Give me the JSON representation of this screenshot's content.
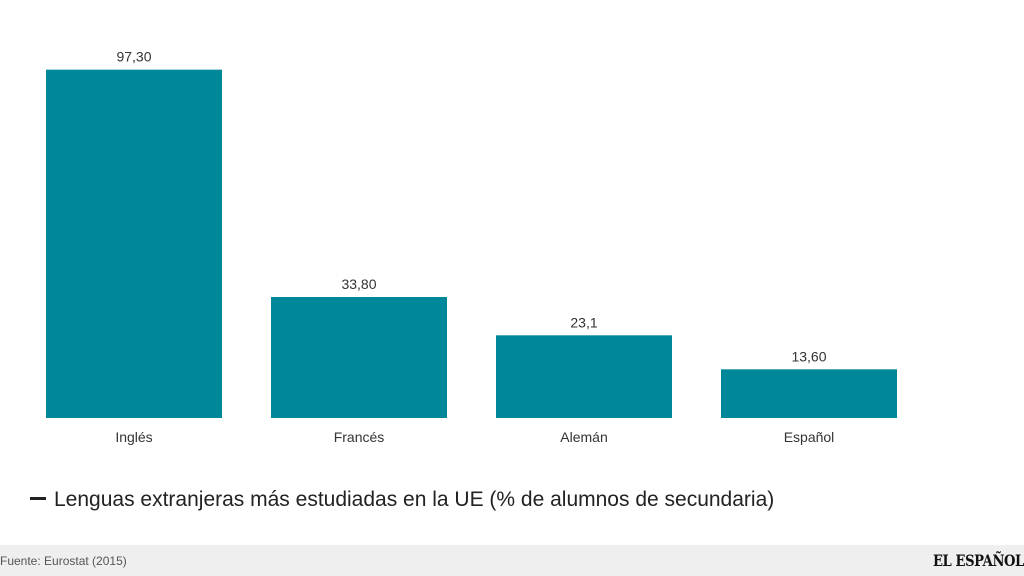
{
  "chart_data": {
    "type": "bar",
    "title": "Lenguas extranjeras más estudiadas en la UE (% de alumnos de secundaria)",
    "categories": [
      "Inglés",
      "Francés",
      "Alemán",
      "Español"
    ],
    "values": [
      97.3,
      33.8,
      23.1,
      13.6
    ],
    "value_labels": [
      "97,30",
      "33,80",
      "23,1",
      "13,60"
    ],
    "xlabel": "",
    "ylabel": "",
    "ylim": [
      0,
      100
    ],
    "grid": false,
    "legend": "bottom-left",
    "bar_color": "#00889a"
  },
  "legend": {
    "text": "Lenguas extranjeras más estudiadas en la UE (% de alumnos de secundaria)"
  },
  "footer": {
    "source": "Fuente: Eurostat (2015)",
    "brand": "EL ESPAÑOL"
  }
}
